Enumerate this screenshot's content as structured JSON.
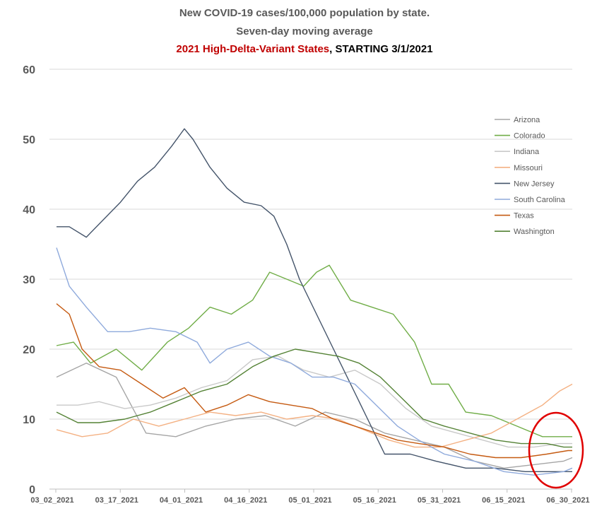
{
  "chart_data": {
    "type": "line",
    "title": "New COVID-19 cases/100,000 population by state.",
    "subtitle": "Seven-day moving average",
    "subtitle2_highlight": "2021 High-Delta-Variant States",
    "subtitle2_rest": ", STARTING 3/1/2021",
    "xlabel": "",
    "ylabel": "",
    "ylim": [
      0,
      60
    ],
    "yticks": [
      "0",
      "10",
      "20",
      "30",
      "40",
      "50",
      "60"
    ],
    "xticks": [
      "03_02_2021",
      "03_17_2021",
      "04_01_2021",
      "04_16_2021",
      "05_01_2021",
      "05_16_2021",
      "05_31_2021",
      "06_15_2021",
      "06_30_2021"
    ],
    "x_start": "2021-03-02",
    "x_end": "2021-07-01",
    "grid": true,
    "legend_position": "right",
    "annotation": "red circle highlighting the final values near 06_30_2021",
    "series": [
      {
        "name": "Arizona",
        "color": "#a5a5a5",
        "x": [
          "2021-03-02",
          "2021-03-09",
          "2021-03-16",
          "2021-03-23",
          "2021-03-30",
          "2021-04-06",
          "2021-04-13",
          "2021-04-20",
          "2021-04-27",
          "2021-05-04",
          "2021-05-11",
          "2021-05-18",
          "2021-05-25",
          "2021-06-01",
          "2021-06-08",
          "2021-06-15",
          "2021-06-22",
          "2021-06-29",
          "2021-07-01"
        ],
        "values": [
          16,
          18,
          16,
          8,
          7.5,
          9,
          10,
          10.5,
          9,
          11,
          10,
          8,
          7,
          6,
          4,
          3,
          3.5,
          4,
          4.5
        ]
      },
      {
        "name": "Colorado",
        "color": "#70ad47",
        "x": [
          "2021-03-02",
          "2021-03-06",
          "2021-03-10",
          "2021-03-16",
          "2021-03-22",
          "2021-03-28",
          "2021-04-02",
          "2021-04-07",
          "2021-04-12",
          "2021-04-17",
          "2021-04-21",
          "2021-04-25",
          "2021-04-29",
          "2021-05-02",
          "2021-05-05",
          "2021-05-10",
          "2021-05-15",
          "2021-05-20",
          "2021-05-25",
          "2021-05-29",
          "2021-06-02",
          "2021-06-06",
          "2021-06-12",
          "2021-06-18",
          "2021-06-24",
          "2021-07-01"
        ],
        "values": [
          20.5,
          21,
          18,
          20,
          17,
          21,
          23,
          26,
          25,
          27,
          31,
          30,
          29,
          31,
          32,
          27,
          26,
          25,
          21,
          15,
          15,
          11,
          10.5,
          9,
          7.5,
          7.5
        ]
      },
      {
        "name": "Indiana",
        "color": "#c9c9c9",
        "x": [
          "2021-03-02",
          "2021-03-07",
          "2021-03-12",
          "2021-03-18",
          "2021-03-24",
          "2021-03-30",
          "2021-04-05",
          "2021-04-11",
          "2021-04-17",
          "2021-04-23",
          "2021-04-29",
          "2021-05-05",
          "2021-05-11",
          "2021-05-17",
          "2021-05-23",
          "2021-05-29",
          "2021-06-04",
          "2021-06-10",
          "2021-06-16",
          "2021-06-22",
          "2021-06-28",
          "2021-07-01"
        ],
        "values": [
          12,
          12,
          12.5,
          11.5,
          12,
          13,
          14.5,
          15.5,
          18.5,
          19,
          17,
          16,
          17,
          15,
          11.5,
          9,
          8,
          7,
          6,
          6,
          6.5,
          6.5
        ]
      },
      {
        "name": "Missouri",
        "color": "#f4b183",
        "x": [
          "2021-03-02",
          "2021-03-08",
          "2021-03-14",
          "2021-03-20",
          "2021-03-26",
          "2021-04-01",
          "2021-04-07",
          "2021-04-13",
          "2021-04-19",
          "2021-04-25",
          "2021-05-01",
          "2021-05-07",
          "2021-05-13",
          "2021-05-19",
          "2021-05-25",
          "2021-05-31",
          "2021-06-06",
          "2021-06-12",
          "2021-06-18",
          "2021-06-24",
          "2021-06-28",
          "2021-07-01"
        ],
        "values": [
          8.5,
          7.5,
          8,
          10,
          9,
          10,
          11,
          10.5,
          11,
          10,
          10.5,
          10,
          8.5,
          7,
          6,
          6,
          7,
          8,
          10,
          12,
          14,
          15
        ]
      },
      {
        "name": "New Jersey",
        "color": "#44546a",
        "x": [
          "2021-03-02",
          "2021-03-05",
          "2021-03-09",
          "2021-03-13",
          "2021-03-17",
          "2021-03-21",
          "2021-03-25",
          "2021-03-29",
          "2021-04-01",
          "2021-04-03",
          "2021-04-07",
          "2021-04-11",
          "2021-04-15",
          "2021-04-19",
          "2021-04-22",
          "2021-04-25",
          "2021-04-28",
          "2021-05-02",
          "2021-05-06",
          "2021-05-10",
          "2021-05-14",
          "2021-05-18",
          "2021-05-24",
          "2021-05-30",
          "2021-06-06",
          "2021-06-13",
          "2021-06-20",
          "2021-06-27",
          "2021-07-01"
        ],
        "values": [
          37.5,
          37.5,
          36,
          38.5,
          41,
          44,
          46,
          49,
          51.5,
          50,
          46,
          43,
          41,
          40.5,
          39,
          35,
          30,
          25,
          20,
          15,
          10,
          5,
          5,
          4,
          3,
          3,
          2.5,
          2.5,
          2.5
        ]
      },
      {
        "name": "South Carolina",
        "color": "#8faadc",
        "x": [
          "2021-03-02",
          "2021-03-05",
          "2021-03-09",
          "2021-03-14",
          "2021-03-19",
          "2021-03-24",
          "2021-03-30",
          "2021-04-04",
          "2021-04-07",
          "2021-04-11",
          "2021-04-16",
          "2021-04-21",
          "2021-04-26",
          "2021-05-01",
          "2021-05-06",
          "2021-05-11",
          "2021-05-16",
          "2021-05-21",
          "2021-05-26",
          "2021-06-01",
          "2021-06-08",
          "2021-06-15",
          "2021-06-22",
          "2021-06-29",
          "2021-07-01"
        ],
        "values": [
          34.5,
          29,
          26,
          22.5,
          22.5,
          23,
          22.5,
          21,
          18,
          20,
          21,
          19,
          18,
          16,
          16,
          15,
          12,
          9,
          7,
          5,
          4,
          2.5,
          2,
          2.5,
          3
        ]
      },
      {
        "name": "Texas",
        "color": "#c55a11",
        "x": [
          "2021-03-02",
          "2021-03-05",
          "2021-03-08",
          "2021-03-12",
          "2021-03-17",
          "2021-03-22",
          "2021-03-27",
          "2021-04-01",
          "2021-04-06",
          "2021-04-11",
          "2021-04-16",
          "2021-04-21",
          "2021-04-26",
          "2021-05-01",
          "2021-05-06",
          "2021-05-11",
          "2021-05-16",
          "2021-05-21",
          "2021-05-26",
          "2021-06-01",
          "2021-06-07",
          "2021-06-13",
          "2021-06-19",
          "2021-06-25",
          "2021-06-30",
          "2021-07-01"
        ],
        "values": [
          26.5,
          25,
          20,
          17.5,
          17,
          15,
          13,
          14.5,
          11,
          12,
          13.5,
          12.5,
          12,
          11.5,
          10,
          9,
          8,
          7,
          6.5,
          6,
          5,
          4.5,
          4.5,
          5,
          5.5,
          5.5
        ]
      },
      {
        "name": "Washington",
        "color": "#548235",
        "x": [
          "2021-03-02",
          "2021-03-07",
          "2021-03-12",
          "2021-03-18",
          "2021-03-24",
          "2021-03-30",
          "2021-04-05",
          "2021-04-11",
          "2021-04-17",
          "2021-04-22",
          "2021-04-27",
          "2021-05-02",
          "2021-05-07",
          "2021-05-12",
          "2021-05-17",
          "2021-05-22",
          "2021-05-27",
          "2021-06-01",
          "2021-06-07",
          "2021-06-13",
          "2021-06-19",
          "2021-06-25",
          "2021-06-29",
          "2021-07-01"
        ],
        "values": [
          11,
          9.5,
          9.5,
          10,
          11,
          12.5,
          14,
          15,
          17.5,
          19,
          20,
          19.5,
          19,
          18,
          16,
          13,
          10,
          9,
          8,
          7,
          6.5,
          6.5,
          6,
          6
        ]
      }
    ]
  }
}
